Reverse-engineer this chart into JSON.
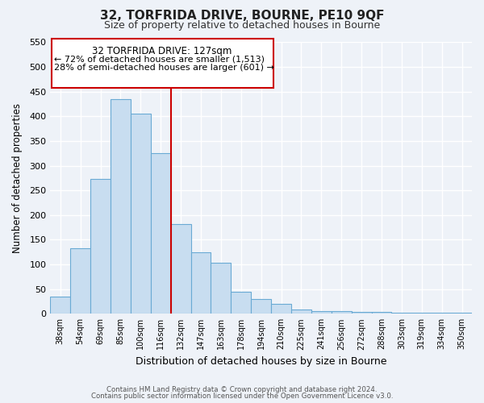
{
  "title": "32, TORFRIDA DRIVE, BOURNE, PE10 9QF",
  "subtitle": "Size of property relative to detached houses in Bourne",
  "xlabel": "Distribution of detached houses by size in Bourne",
  "ylabel": "Number of detached properties",
  "categories": [
    "38sqm",
    "54sqm",
    "69sqm",
    "85sqm",
    "100sqm",
    "116sqm",
    "132sqm",
    "147sqm",
    "163sqm",
    "178sqm",
    "194sqm",
    "210sqm",
    "225sqm",
    "241sqm",
    "256sqm",
    "272sqm",
    "288sqm",
    "303sqm",
    "319sqm",
    "334sqm",
    "350sqm"
  ],
  "values": [
    35,
    133,
    273,
    435,
    406,
    325,
    182,
    125,
    103,
    45,
    30,
    20,
    8,
    6,
    5,
    3,
    3,
    2,
    2,
    2,
    2
  ],
  "bar_color": "#c8ddf0",
  "bar_edge_color": "#6aaad4",
  "vline_x_index": 6,
  "vline_color": "#cc0000",
  "annotation_title": "32 TORFRIDA DRIVE: 127sqm",
  "annotation_line1": "← 72% of detached houses are smaller (1,513)",
  "annotation_line2": "28% of semi-detached houses are larger (601) →",
  "annotation_box_color": "#ffffff",
  "annotation_box_edge": "#cc0000",
  "ylim": [
    0,
    550
  ],
  "yticks": [
    0,
    50,
    100,
    150,
    200,
    250,
    300,
    350,
    400,
    450,
    500,
    550
  ],
  "footer1": "Contains HM Land Registry data © Crown copyright and database right 2024.",
  "footer2": "Contains public sector information licensed under the Open Government Licence v3.0.",
  "bg_color": "#eef2f8",
  "plot_bg_color": "#eef2f8",
  "grid_color": "#ffffff",
  "spine_color": "#aaaacc"
}
